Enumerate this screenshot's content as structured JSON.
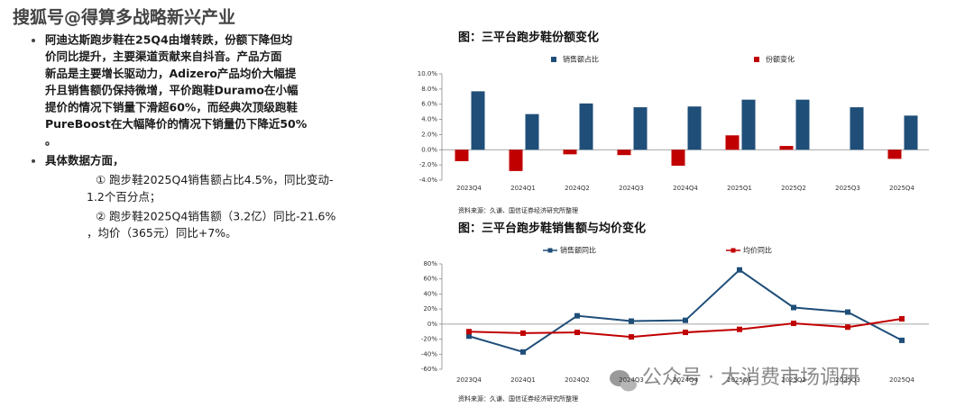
{
  "watermark": "搜狐号@得算多战略新兴产业",
  "watermark2": "公众号 · 大消费市场调研",
  "bullets": [
    {
      "lines": [
        "阿迪达斯跑步鞋在25Q4由增转跌，份额下降但均",
        "价同比提升，主要渠道贡献来自抖音。产品方面",
        "新品是主要增长驱动力，Adizero产品均价大幅提",
        "升且销售额仍保持微增，平价跑鞋Duramo在小幅",
        "提价的情况下销量下滑超60%，而经典次顶级跑鞋",
        "PureBoost在大幅降价的情况下销量仍下降近50%",
        "。"
      ]
    },
    {
      "lines": [
        "具体数据方面，"
      ],
      "items": [
        {
          "lines": [
            "① 跑步鞋2025Q4销售额占比4.5%，同比变动-",
            "1.2个百分点；"
          ]
        },
        {
          "lines": [
            "② 跑步鞋2025Q4销售额（3.2亿）同比-21.6%",
            "，均价（365元）同比+7%。"
          ]
        }
      ]
    }
  ],
  "chart_data": [
    {
      "type": "bar",
      "title": "图：三平台跑步鞋份额变化",
      "categories": [
        "2023Q4",
        "2024Q1",
        "2024Q2",
        "2024Q3",
        "2024Q4",
        "2025Q1",
        "2025Q2",
        "2025Q3",
        "2025Q4"
      ],
      "series": [
        {
          "name": "销售额占比",
          "color": "#1f4e79",
          "values": [
            7.7,
            4.7,
            6.1,
            5.6,
            5.7,
            6.6,
            6.6,
            5.6,
            4.5
          ]
        },
        {
          "name": "份额变化",
          "color": "#c00000",
          "values": [
            -1.5,
            -2.8,
            -0.6,
            -0.7,
            -2.1,
            1.9,
            0.5,
            0,
            -1.2
          ]
        }
      ],
      "ylim": [
        -4,
        10
      ],
      "yticks": [
        {
          "value": -4,
          "label": "-4.0%"
        },
        {
          "value": -2,
          "label": "-2.0%"
        },
        {
          "value": 0,
          "label": "0.0%"
        },
        {
          "value": 2,
          "label": "2.0%"
        },
        {
          "value": 4,
          "label": "4.0%"
        },
        {
          "value": 6,
          "label": "6.0%"
        },
        {
          "value": 8,
          "label": "8.0%"
        },
        {
          "value": 10,
          "label": "10.0%"
        }
      ],
      "source": "资料来源：久谦、国信证券经济研究所整理"
    },
    {
      "type": "line",
      "title": "图：三平台跑步鞋销售额与均价变化",
      "categories": [
        "2023Q4",
        "2024Q1",
        "2024Q2",
        "2024Q3",
        "2024Q4",
        "2025Q1",
        "2025Q2",
        "2025Q3",
        "2025Q4"
      ],
      "series": [
        {
          "name": "销售额同比",
          "color": "#1f4e79",
          "values": [
            -16,
            -37,
            11,
            4,
            5,
            72,
            22,
            16,
            -21.6
          ]
        },
        {
          "name": "均价同比",
          "color": "#c00000",
          "values": [
            -10,
            -12,
            -11,
            -17,
            -11,
            -7,
            1,
            -4,
            7
          ]
        }
      ],
      "ylim": [
        -60,
        80
      ],
      "yticks": [
        {
          "value": -60,
          "label": "-60%"
        },
        {
          "value": -40,
          "label": "-40%"
        },
        {
          "value": -20,
          "label": "-20%"
        },
        {
          "value": 0,
          "label": "0%"
        },
        {
          "value": 20,
          "label": "20%"
        },
        {
          "value": 40,
          "label": "40%"
        },
        {
          "value": 60,
          "label": "60%"
        },
        {
          "value": 80,
          "label": "80%"
        }
      ],
      "source": "资料来源：久谦、国信证券经济研究所整理"
    }
  ]
}
